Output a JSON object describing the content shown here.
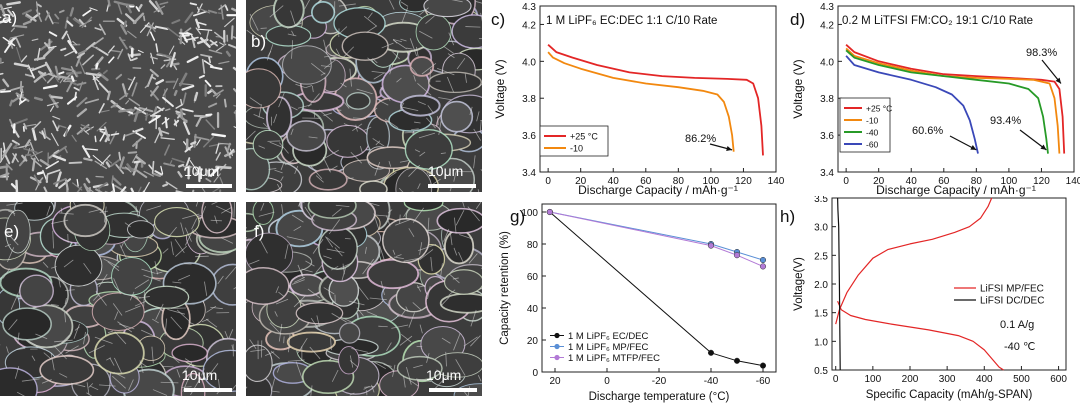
{
  "sem_panels": [
    {
      "letter": "a)",
      "scale": "10μm"
    },
    {
      "letter": "b)",
      "scale": "10μm"
    },
    {
      "letter": "e)",
      "scale": "10μm"
    },
    {
      "letter": "f)",
      "scale": "10μm"
    }
  ],
  "colors": {
    "red": "#e32626",
    "orange": "#f2880f",
    "green": "#279a27",
    "blue": "#3a48b8",
    "black": "#111111",
    "light_blue": "#5a8fd6",
    "violet": "#b27ad6"
  },
  "chart_data": [
    {
      "id": "c",
      "letter": "c)",
      "type": "line",
      "title": "1 M LiPF₆ EC:DEC 1:1 C/10 Rate",
      "xlabel": "Discharge Capacity / mAh·g⁻¹",
      "ylabel": "Voltage (V)",
      "xlim": [
        -5,
        140
      ],
      "ylim": [
        3.4,
        4.3
      ],
      "xticks": [
        "0",
        "20",
        "40",
        "60",
        "80",
        "100",
        "120",
        "140"
      ],
      "yticks": [
        "3.4",
        "3.6",
        "3.8",
        "4.0",
        "4.2",
        "4.3"
      ],
      "legend_position": "bottom-left",
      "annotations": [
        {
          "text": "86.2%"
        }
      ],
      "series": [
        {
          "name": "+25 °C",
          "color": "#e32626",
          "x": [
            0,
            5,
            15,
            30,
            50,
            70,
            90,
            110,
            122,
            126,
            129,
            131,
            132
          ],
          "y": [
            4.09,
            4.05,
            4.02,
            3.98,
            3.94,
            3.92,
            3.91,
            3.905,
            3.9,
            3.88,
            3.8,
            3.65,
            3.49
          ]
        },
        {
          "name": "-10",
          "color": "#f2880f",
          "x": [
            0,
            3,
            10,
            20,
            40,
            60,
            80,
            95,
            104,
            108,
            111,
            113,
            114
          ],
          "y": [
            4.05,
            4.02,
            3.99,
            3.96,
            3.91,
            3.88,
            3.86,
            3.84,
            3.82,
            3.78,
            3.7,
            3.6,
            3.51
          ]
        }
      ]
    },
    {
      "id": "d",
      "letter": "d)",
      "type": "line",
      "title": "0.2 M LiTFSI FM:CO₂ 19:1 C/10 Rate",
      "xlabel": "Discharge Capacity / mAh·g⁻¹",
      "ylabel": "Voltage (V)",
      "xlim": [
        -5,
        140
      ],
      "ylim": [
        3.4,
        4.3
      ],
      "xticks": [
        "0",
        "20",
        "40",
        "60",
        "80",
        "100",
        "120",
        "140"
      ],
      "yticks": [
        "3.4",
        "3.6",
        "3.8",
        "4.0",
        "4.2",
        "4.3"
      ],
      "legend_position": "bottom-left",
      "annotations": [
        {
          "text": "98.3%"
        },
        {
          "text": "60.6%"
        },
        {
          "text": "93.4%"
        }
      ],
      "series": [
        {
          "name": "+25 °C",
          "color": "#e32626",
          "x": [
            0,
            5,
            20,
            40,
            60,
            80,
            100,
            120,
            128,
            131,
            133,
            134
          ],
          "y": [
            4.09,
            4.05,
            4.0,
            3.96,
            3.93,
            3.92,
            3.91,
            3.9,
            3.89,
            3.85,
            3.7,
            3.5
          ]
        },
        {
          "name": "-10",
          "color": "#f2880f",
          "x": [
            0,
            5,
            20,
            40,
            60,
            80,
            100,
            115,
            125,
            128,
            130,
            131
          ],
          "y": [
            4.07,
            4.03,
            3.99,
            3.95,
            3.92,
            3.91,
            3.905,
            3.9,
            3.88,
            3.8,
            3.65,
            3.5
          ]
        },
        {
          "name": "-40",
          "color": "#279a27",
          "x": [
            0,
            5,
            20,
            40,
            60,
            80,
            100,
            112,
            118,
            121,
            123,
            124
          ],
          "y": [
            4.06,
            4.02,
            3.98,
            3.94,
            3.92,
            3.9,
            3.88,
            3.85,
            3.8,
            3.7,
            3.58,
            3.5
          ]
        },
        {
          "name": "-60",
          "color": "#3a48b8",
          "x": [
            0,
            5,
            20,
            40,
            55,
            65,
            72,
            76,
            79,
            81
          ],
          "y": [
            4.03,
            3.98,
            3.94,
            3.9,
            3.86,
            3.82,
            3.76,
            3.68,
            3.58,
            3.5
          ]
        }
      ]
    },
    {
      "id": "g",
      "letter": "g)",
      "type": "line",
      "title": "",
      "xlabel": "Discharge temperature (°C)",
      "ylabel": "Capacity retention (%)",
      "xlim": [
        25,
        -65
      ],
      "ylim": [
        0,
        105
      ],
      "xticks": [
        "20",
        "0",
        "-20",
        "-40",
        "-60"
      ],
      "yticks": [
        "0",
        "20",
        "40",
        "60",
        "80",
        "100"
      ],
      "legend_position": "bottom-left",
      "series": [
        {
          "name": "1 M LiPF₆ EC/DEC",
          "color": "#111111",
          "x": [
            22,
            -40,
            -50,
            -60
          ],
          "y": [
            100,
            12,
            7,
            4
          ]
        },
        {
          "name": "1 M LiPF₆ MP/FEC",
          "color": "#5a8fd6",
          "x": [
            22,
            -40,
            -50,
            -60
          ],
          "y": [
            100,
            80,
            75,
            70
          ]
        },
        {
          "name": "1 M LiPF₆ MTFP/FEC",
          "color": "#b27ad6",
          "x": [
            22,
            -40,
            -50,
            -60
          ],
          "y": [
            100,
            79,
            73,
            66
          ]
        }
      ]
    },
    {
      "id": "h",
      "letter": "h)",
      "type": "line",
      "title": "",
      "xlabel": "Specific Capacity (mAh/g-SPAN)",
      "ylabel": "Voltage(V)",
      "xlim": [
        -10,
        620
      ],
      "ylim": [
        0.5,
        3.5
      ],
      "xticks": [
        "0",
        "100",
        "200",
        "300",
        "400",
        "500",
        "600"
      ],
      "yticks": [
        "0.5",
        "1.0",
        "1.5",
        "2.0",
        "2.5",
        "3.0",
        "3.5"
      ],
      "legend_position": "middle-right",
      "annotations": [
        {
          "text": "0.1 A/g"
        },
        {
          "text": "-40 ℃"
        }
      ],
      "series": [
        {
          "name": "LiFSI MP/FEC",
          "color": "#e32626",
          "segments": [
            {
              "x": [
                5,
                15,
                40,
                80,
                150,
                250,
                330,
                370,
                400,
                420,
                440,
                452
              ],
              "y": [
                1.7,
                1.55,
                1.45,
                1.38,
                1.3,
                1.2,
                1.1,
                1.0,
                0.85,
                0.7,
                0.55,
                0.5
              ]
            },
            {
              "x": [
                0,
                10,
                30,
                60,
                100,
                140,
                200,
                260,
                320,
                360,
                390,
                410,
                420
              ],
              "y": [
                1.3,
                1.55,
                1.85,
                2.15,
                2.45,
                2.6,
                2.7,
                2.78,
                2.9,
                3.0,
                3.15,
                3.35,
                3.5
              ]
            }
          ]
        },
        {
          "name": "LiFSI DC/DEC",
          "color": "#111111",
          "segments": [
            {
              "x": [
                5,
                6,
                8,
                10,
                12
              ],
              "y": [
                3.5,
                3.3,
                3.0,
                2.0,
                0.5
              ]
            }
          ]
        }
      ]
    }
  ]
}
